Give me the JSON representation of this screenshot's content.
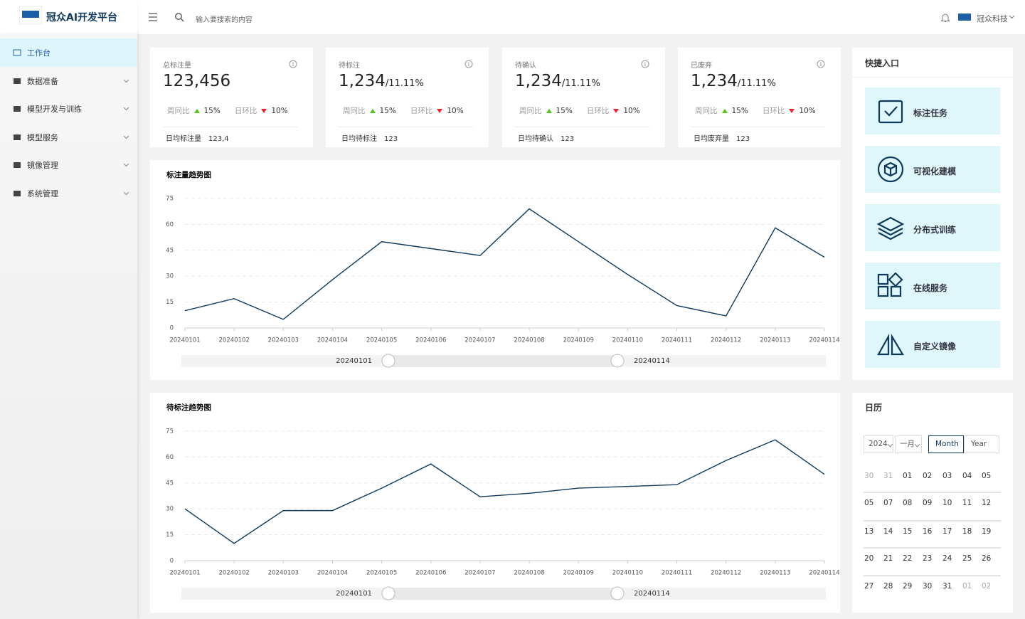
{
  "header": {
    "title": "冠众AI开发平台",
    "search_placeholder": "输入要搜索的内容",
    "user": "冠众科技"
  },
  "menu": [
    "工作台",
    "数据准备",
    "模型开发与训练",
    "模型服务",
    "镜像管理",
    "系统管理"
  ],
  "stats": [
    {
      "title": "总标注量",
      "value": "123,456",
      "week_label": "周同比",
      "week": "15%",
      "day_label": "日环比",
      "day": "10%",
      "footer_label": "日均标注量",
      "footer_value": "123,4"
    },
    {
      "title": "待标注",
      "value": "1,234",
      "suffix": "/11.11%",
      "week_label": "周同比",
      "week": "15%",
      "day_label": "日环比",
      "day": "10%",
      "footer_label": "日均待标注",
      "footer_value": "123"
    },
    {
      "title": "待确认",
      "value": "1,234",
      "suffix": "/11.11%",
      "week_label": "周同比",
      "week": "15%",
      "day_label": "日环比",
      "day": "10%",
      "footer_label": "日均待确认",
      "footer_value": "123"
    },
    {
      "title": "已废弃",
      "value": "1,234",
      "suffix": "/11.11%",
      "week_label": "周同比",
      "week": "15%",
      "day_label": "日环比",
      "day": "10%",
      "footer_label": "日均废弃量",
      "footer_value": "123"
    }
  ],
  "quick": {
    "title": "快捷入口",
    "items": [
      "标注任务",
      "可视化建模",
      "分布式训练",
      "在线服务",
      "自定义镜像"
    ]
  },
  "calendar": {
    "title": "日历",
    "year": "2024",
    "month": "一月",
    "modes": [
      "Month",
      "Year"
    ],
    "weeks": [
      [
        "30",
        "31",
        "01",
        "02",
        "03",
        "04",
        "05"
      ],
      [
        "05",
        "07",
        "08",
        "09",
        "10",
        "11",
        "12"
      ],
      [
        "13",
        "14",
        "15",
        "16",
        "17",
        "18",
        "19"
      ],
      [
        "20",
        "21",
        "22",
        "23",
        "24",
        "25",
        "26"
      ],
      [
        "27",
        "28",
        "29",
        "30",
        "31",
        "01",
        "02"
      ]
    ]
  },
  "chart_data": [
    {
      "type": "line",
      "title": "标注量趋势图",
      "categories": [
        "20240101",
        "20240102",
        "20240103",
        "20240104",
        "20240105",
        "20240106",
        "20240107",
        "20240108",
        "20240109",
        "20240110",
        "20240111",
        "20240112",
        "20240113",
        "20240114"
      ],
      "series": [
        {
          "color": "#0e3a5e",
          "values": [
            10,
            17,
            5,
            28,
            50,
            46,
            42,
            69,
            50,
            31,
            13,
            7,
            58,
            41
          ]
        }
      ],
      "ylim": [
        0,
        75
      ],
      "yticks": [
        0,
        15,
        30,
        45,
        60,
        75
      ],
      "grid": true
    },
    {
      "type": "line",
      "title": "待标注趋势图",
      "categories": [
        "20240101",
        "20240102",
        "20240103",
        "20240104",
        "20240105",
        "20240106",
        "20240107",
        "20240108",
        "20240109",
        "20240110",
        "20240111",
        "20240112",
        "20240113",
        "20240114"
      ],
      "series": [
        {
          "color": "#0e3a5e",
          "values": [
            30,
            10,
            29,
            29,
            42,
            56,
            37,
            39,
            42,
            43,
            44,
            58,
            70,
            50
          ]
        }
      ],
      "ylim": [
        0,
        75
      ],
      "yticks": [
        0,
        15,
        30,
        45,
        60,
        75
      ],
      "grid": true
    }
  ]
}
